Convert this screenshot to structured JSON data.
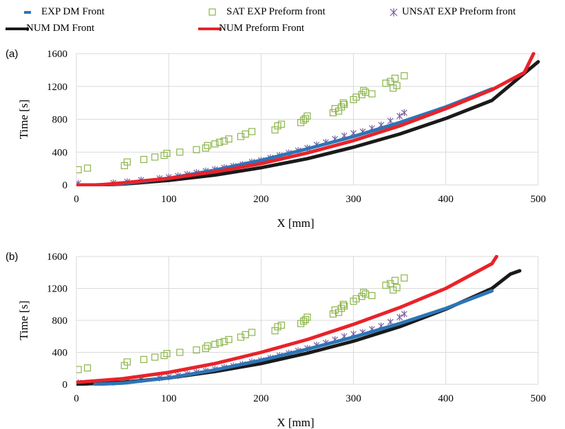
{
  "legend": {
    "exp_dm": "EXP DM Front",
    "sat": "SAT EXP Preform front",
    "unsat": "UNSAT EXP Preform front",
    "num_dm": "NUM DM Front",
    "num_pf": "NUM Preform Front"
  },
  "colors": {
    "exp_dm": "#2e75b6",
    "sat": "#8bb44a",
    "unsat": "#7a5aa0",
    "num_dm": "#1a1a1a",
    "num_pf": "#e8232a",
    "grid": "#d9d9d9"
  },
  "chart_data": [
    {
      "type": "scatter",
      "panel_label": "(a)",
      "xlabel": "X [mm]",
      "ylabel": "Time [s]",
      "xlim": [
        0,
        500
      ],
      "ylim": [
        0,
        1600
      ],
      "xticks": [
        0,
        100,
        200,
        300,
        400,
        500
      ],
      "yticks": [
        0,
        400,
        800,
        1200,
        1600
      ],
      "grid": true,
      "legend_position": "top",
      "series": [
        {
          "name": "EXP DM Front",
          "style": "thick-line",
          "x": [
            20,
            50,
            100,
            150,
            200,
            250,
            300,
            350,
            400,
            450
          ],
          "y": [
            0,
            15,
            80,
            180,
            300,
            440,
            590,
            760,
            950,
            1170
          ]
        },
        {
          "name": "SAT EXP Preform front",
          "style": "square-markers",
          "x": [
            2,
            12,
            52,
            55,
            73,
            85,
            95,
            98,
            112,
            130,
            140,
            142,
            150,
            155,
            160,
            165,
            178,
            183,
            190,
            215,
            218,
            222,
            243,
            246,
            248,
            250,
            278,
            280,
            284,
            287,
            289,
            290,
            300,
            303,
            309,
            311,
            313,
            320,
            335,
            340,
            343,
            345,
            347,
            355
          ],
          "y": [
            185,
            205,
            235,
            280,
            310,
            340,
            360,
            385,
            400,
            430,
            450,
            480,
            500,
            520,
            535,
            560,
            590,
            620,
            650,
            670,
            720,
            740,
            760,
            790,
            810,
            840,
            880,
            930,
            900,
            950,
            1000,
            980,
            1040,
            1070,
            1100,
            1150,
            1130,
            1110,
            1240,
            1260,
            1180,
            1300,
            1210,
            1330
          ]
        },
        {
          "name": "UNSAT EXP Preform front",
          "style": "asterisk-markers",
          "x": [
            2,
            40,
            55,
            70,
            90,
            100,
            110,
            120,
            130,
            140,
            150,
            160,
            170,
            180,
            190,
            200,
            210,
            220,
            230,
            240,
            250,
            260,
            270,
            280,
            290,
            300,
            310,
            320,
            330,
            340,
            350,
            355
          ],
          "y": [
            20,
            25,
            40,
            60,
            80,
            95,
            110,
            130,
            150,
            170,
            190,
            210,
            230,
            250,
            280,
            300,
            330,
            360,
            390,
            420,
            450,
            490,
            520,
            560,
            600,
            630,
            650,
            690,
            730,
            780,
            840,
            880
          ]
        },
        {
          "name": "NUM DM Front",
          "style": "thick-line",
          "x": [
            0,
            25,
            50,
            100,
            150,
            200,
            250,
            300,
            350,
            400,
            450,
            500
          ],
          "y": [
            0,
            0,
            10,
            55,
            120,
            210,
            320,
            460,
            620,
            810,
            1030,
            1500
          ]
        },
        {
          "name": "NUM Preform Front",
          "style": "thick-line",
          "x": [
            0,
            25,
            50,
            100,
            150,
            200,
            250,
            300,
            350,
            400,
            450,
            485,
            495
          ],
          "y": [
            0,
            0,
            25,
            80,
            160,
            260,
            390,
            540,
            720,
            930,
            1160,
            1370,
            1600
          ]
        }
      ]
    },
    {
      "type": "scatter",
      "panel_label": "(b)",
      "xlabel": "X [mm]",
      "ylabel": "Time [s]",
      "xlim": [
        0,
        500
      ],
      "ylim": [
        0,
        1600
      ],
      "xticks": [
        0,
        100,
        200,
        300,
        400,
        500
      ],
      "yticks": [
        0,
        400,
        800,
        1200,
        1600
      ],
      "grid": true,
      "series": [
        {
          "name": "EXP DM Front",
          "style": "thick-line",
          "x": [
            20,
            50,
            100,
            150,
            200,
            250,
            300,
            350,
            400,
            450
          ],
          "y": [
            0,
            15,
            80,
            180,
            300,
            440,
            590,
            760,
            950,
            1170
          ]
        },
        {
          "name": "SAT EXP Preform front",
          "style": "square-markers",
          "x": [
            2,
            12,
            52,
            55,
            73,
            85,
            95,
            98,
            112,
            130,
            140,
            142,
            150,
            155,
            160,
            165,
            178,
            183,
            190,
            215,
            218,
            222,
            243,
            246,
            248,
            250,
            278,
            280,
            284,
            287,
            289,
            290,
            300,
            303,
            309,
            311,
            313,
            320,
            335,
            340,
            343,
            345,
            347,
            355
          ],
          "y": [
            185,
            205,
            235,
            280,
            310,
            340,
            360,
            385,
            400,
            430,
            450,
            480,
            500,
            520,
            535,
            560,
            590,
            620,
            650,
            670,
            720,
            740,
            760,
            790,
            810,
            840,
            880,
            930,
            900,
            950,
            1000,
            980,
            1040,
            1070,
            1100,
            1150,
            1130,
            1110,
            1240,
            1260,
            1180,
            1300,
            1210,
            1330
          ]
        },
        {
          "name": "UNSAT EXP Preform front",
          "style": "asterisk-markers",
          "x": [
            2,
            40,
            55,
            70,
            90,
            100,
            110,
            120,
            130,
            140,
            150,
            160,
            170,
            180,
            190,
            200,
            210,
            220,
            230,
            240,
            250,
            260,
            270,
            280,
            290,
            300,
            310,
            320,
            330,
            340,
            350,
            355
          ],
          "y": [
            20,
            25,
            40,
            60,
            80,
            95,
            110,
            130,
            150,
            170,
            190,
            210,
            230,
            250,
            280,
            300,
            330,
            360,
            390,
            420,
            450,
            490,
            520,
            560,
            600,
            630,
            650,
            690,
            730,
            780,
            840,
            880
          ]
        },
        {
          "name": "NUM DM Front",
          "style": "thick-line",
          "x": [
            0,
            50,
            100,
            150,
            200,
            250,
            300,
            350,
            400,
            450,
            470,
            480
          ],
          "y": [
            0,
            25,
            80,
            160,
            260,
            390,
            540,
            720,
            940,
            1200,
            1380,
            1420
          ]
        },
        {
          "name": "NUM Preform Front",
          "style": "thick-line",
          "x": [
            0,
            50,
            100,
            150,
            200,
            250,
            300,
            350,
            400,
            450,
            455
          ],
          "y": [
            25,
            70,
            150,
            260,
            400,
            560,
            750,
            960,
            1200,
            1510,
            1600
          ]
        }
      ]
    }
  ]
}
